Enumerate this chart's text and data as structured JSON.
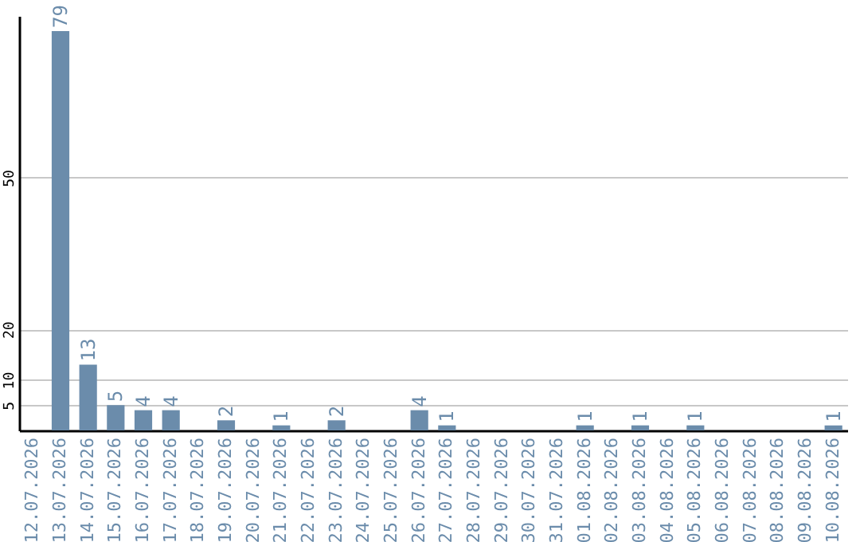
{
  "chart_data": {
    "type": "bar",
    "categories": [
      "12.07.2026",
      "13.07.2026",
      "14.07.2026",
      "15.07.2026",
      "16.07.2026",
      "17.07.2026",
      "18.07.2026",
      "19.07.2026",
      "20.07.2026",
      "21.07.2026",
      "22.07.2026",
      "23.07.2026",
      "24.07.2026",
      "25.07.2026",
      "26.07.2026",
      "27.07.2026",
      "28.07.2026",
      "29.07.2026",
      "30.07.2026",
      "31.07.2026",
      "01.08.2026",
      "02.08.2026",
      "03.08.2026",
      "04.08.2026",
      "05.08.2026",
      "06.08.2026",
      "07.08.2026",
      "08.08.2026",
      "09.08.2026",
      "10.08.2026"
    ],
    "values": [
      0,
      79,
      13,
      5,
      4,
      4,
      0,
      2,
      0,
      1,
      0,
      2,
      0,
      0,
      4,
      1,
      0,
      0,
      0,
      0,
      1,
      0,
      1,
      0,
      1,
      0,
      0,
      0,
      0,
      1
    ],
    "value_labels": [
      null,
      "79",
      "13",
      "5",
      "4",
      "4",
      null,
      "2",
      null,
      "1",
      null,
      "2",
      null,
      null,
      "4",
      "1",
      null,
      null,
      null,
      null,
      "1",
      null,
      "1",
      null,
      "1",
      null,
      null,
      null,
      null,
      "1"
    ],
    "color": "#6b8cab",
    "ylim": [
      0,
      82
    ],
    "yticks": [
      5,
      10,
      20,
      50
    ],
    "grid": "y"
  }
}
